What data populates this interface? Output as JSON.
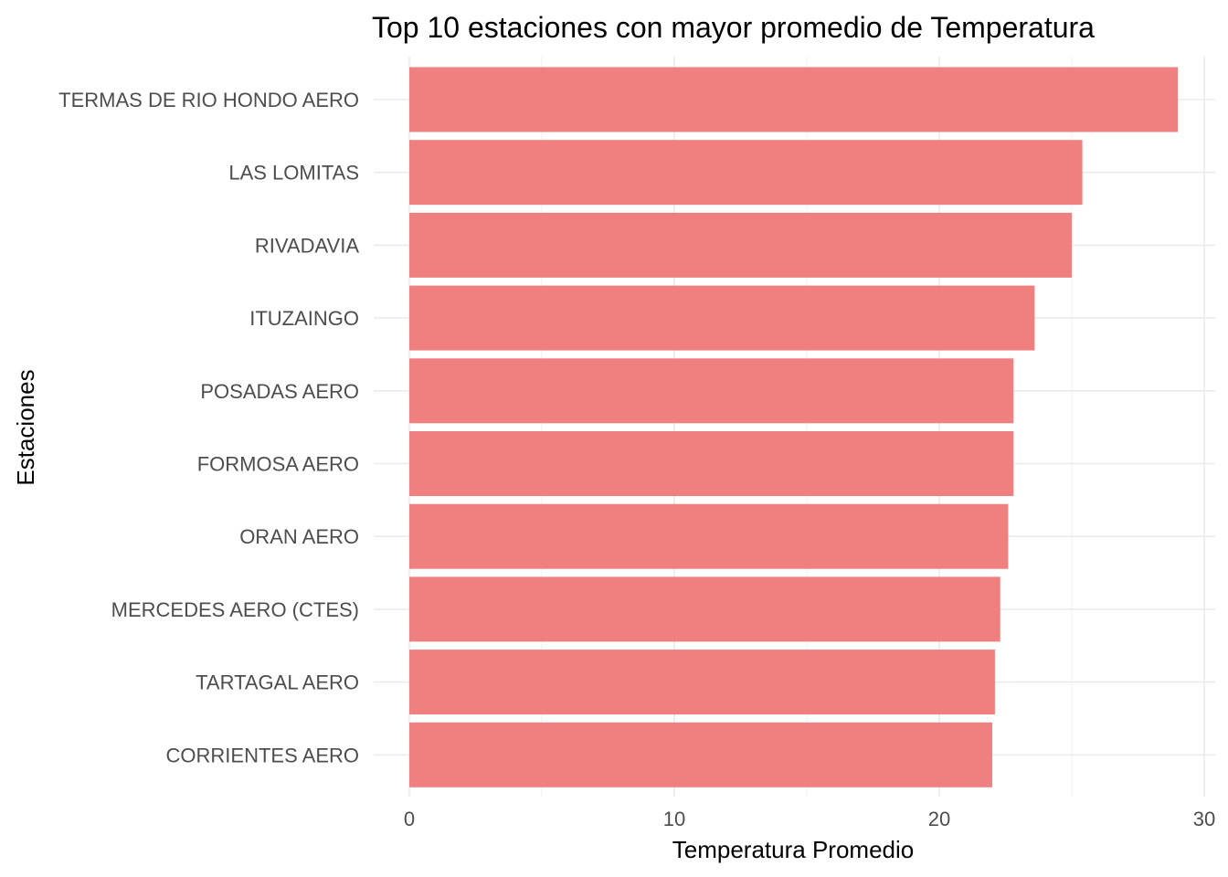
{
  "chart_data": {
    "type": "bar",
    "orientation": "horizontal",
    "title": "Top 10 estaciones con mayor promedio de Temperatura",
    "xlabel": "Temperatura Promedio",
    "ylabel": "Estaciones",
    "categories": [
      "TERMAS DE RIO HONDO AERO",
      "LAS LOMITAS",
      "RIVADAVIA",
      "ITUZAINGO",
      "POSADAS AERO",
      "FORMOSA AERO",
      "ORAN AERO",
      "MERCEDES AERO (CTES)",
      "TARTAGAL AERO",
      "CORRIENTES AERO"
    ],
    "values": [
      29.0,
      25.4,
      25.0,
      23.6,
      22.8,
      22.8,
      22.6,
      22.3,
      22.1,
      22.0
    ],
    "xlim": [
      0,
      30
    ],
    "xticks": [
      "0",
      "10",
      "20",
      "30"
    ],
    "grid": true,
    "bar_color": "#F08080"
  }
}
